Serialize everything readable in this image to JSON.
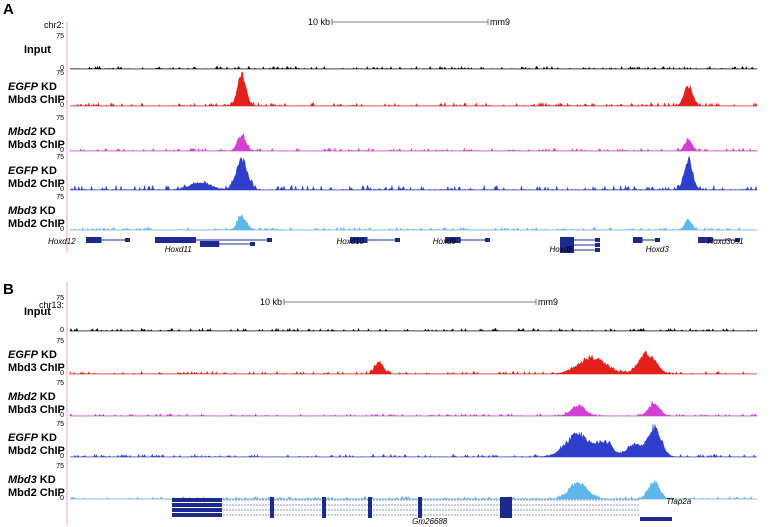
{
  "panels": [
    {
      "letter": "A",
      "chrom": "chr2:",
      "scale_label": "10 kb",
      "assembly": "mm9",
      "tracks": [
        {
          "name": "input",
          "line1": "Input",
          "line1_italic": "",
          "line2": "",
          "ymax": "75",
          "ymin": "0",
          "color": "#000000",
          "peaks": [],
          "noise": 2.0,
          "seed": 3
        },
        {
          "name": "egfp-mbd3",
          "line1": "KD",
          "line1_italic": "EGFP",
          "line2": "Mbd3 ChIP",
          "ymax": "75",
          "ymin": "0",
          "color": "#e3201b",
          "peaks": [
            {
              "x": 0.25,
              "h": 0.95,
              "w": 0.006
            },
            {
              "x": 0.9,
              "h": 0.6,
              "w": 0.006
            }
          ],
          "noise": 2.5,
          "seed": 7
        },
        {
          "name": "mbd2-mbd3",
          "line1": "KD",
          "line1_italic": "Mbd2",
          "line2": "Mbd3 ChIP",
          "ymax": "75",
          "ymin": "0",
          "color": "#d23fd2",
          "peaks": [
            {
              "x": 0.25,
              "h": 0.45,
              "w": 0.006
            },
            {
              "x": 0.9,
              "h": 0.3,
              "w": 0.005
            }
          ],
          "noise": 2.0,
          "seed": 11
        },
        {
          "name": "egfp-mbd2",
          "line1": "KD",
          "line1_italic": "EGFP",
          "line2": "Mbd2 ChIP",
          "ymax": "75",
          "ymin": "0",
          "color": "#2f3fcc",
          "peaks": [
            {
              "x": 0.25,
              "h": 0.9,
              "w": 0.008
            },
            {
              "x": 0.9,
              "h": 0.85,
              "w": 0.006
            },
            {
              "x": 0.19,
              "h": 0.2,
              "w": 0.015
            }
          ],
          "noise": 3.5,
          "seed": 13
        },
        {
          "name": "mbd3-mbd2",
          "line1": "KD",
          "line1_italic": "Mbd3",
          "line2": "Mbd2 ChIP",
          "ymax": "75",
          "ymin": "0",
          "color": "#5fb6ea",
          "peaks": [
            {
              "x": 0.25,
              "h": 0.4,
              "w": 0.006
            },
            {
              "x": 0.9,
              "h": 0.3,
              "w": 0.005
            }
          ],
          "noise": 2.0,
          "seed": 17
        }
      ],
      "genes": [
        {
          "label": "Hoxd12",
          "lx": 0.0,
          "ly": 0
        },
        {
          "label": "Hoxd11",
          "lx": 0.17,
          "ly": 1
        },
        {
          "label": "Hoxd10",
          "lx": 0.42,
          "ly": 0
        },
        {
          "label": "Hoxd9",
          "lx": 0.56,
          "ly": 0
        },
        {
          "label": "Hoxd8",
          "lx": 0.73,
          "ly": 1
        },
        {
          "label": "Hoxd3",
          "lx": 0.87,
          "ly": 1
        },
        {
          "label": "Hoxd3os1",
          "lx": 0.96,
          "ly": 0
        }
      ]
    },
    {
      "letter": "B",
      "chrom": "chr13:",
      "scale_label": "10 kb",
      "assembly": "mm9",
      "tracks": [
        {
          "name": "input",
          "line1": "Input",
          "line1_italic": "",
          "line2": "",
          "ymax": "75",
          "ymin": "0",
          "color": "#000000",
          "peaks": [],
          "noise": 2.0,
          "seed": 19
        },
        {
          "name": "egfp-mbd3",
          "line1": "KD",
          "line1_italic": "EGFP",
          "line2": "Mbd3 ChIP",
          "ymax": "75",
          "ymin": "0",
          "color": "#e3201b",
          "peaks": [
            {
              "x": 0.45,
              "h": 0.35,
              "w": 0.006
            },
            {
              "x": 0.76,
              "h": 0.45,
              "w": 0.02
            },
            {
              "x": 0.84,
              "h": 0.6,
              "w": 0.012
            }
          ],
          "noise": 2.0,
          "seed": 23
        },
        {
          "name": "mbd2-mbd3",
          "line1": "KD",
          "line1_italic": "Mbd2",
          "line2": "Mbd3 ChIP",
          "ymax": "75",
          "ymin": "0",
          "color": "#d23fd2",
          "peaks": [
            {
              "x": 0.74,
              "h": 0.3,
              "w": 0.01
            },
            {
              "x": 0.85,
              "h": 0.35,
              "w": 0.008
            }
          ],
          "noise": 1.8,
          "seed": 29
        },
        {
          "name": "egfp-mbd2",
          "line1": "KD",
          "line1_italic": "EGFP",
          "line2": "Mbd2 ChIP",
          "ymax": "75",
          "ymin": "0",
          "color": "#2f3fcc",
          "peaks": [
            {
              "x": 0.74,
              "h": 0.65,
              "w": 0.018
            },
            {
              "x": 0.78,
              "h": 0.4,
              "w": 0.01
            },
            {
              "x": 0.82,
              "h": 0.35,
              "w": 0.01
            },
            {
              "x": 0.85,
              "h": 0.85,
              "w": 0.01
            }
          ],
          "noise": 2.0,
          "seed": 31
        },
        {
          "name": "mbd3-mbd2",
          "line1": "KD",
          "line1_italic": "Mbd3",
          "line2": "Mbd2 ChIP",
          "ymax": "75",
          "ymin": "0",
          "color": "#5fb6ea",
          "peaks": [
            {
              "x": 0.74,
              "h": 0.5,
              "w": 0.012
            },
            {
              "x": 0.85,
              "h": 0.5,
              "w": 0.008
            }
          ],
          "noise": 1.8,
          "seed": 37
        }
      ],
      "genes": [
        {
          "label": "Tfap2a",
          "lx": 0.9,
          "ly": 0
        },
        {
          "label": "Gm26688",
          "lx": 0.53,
          "ly": 1
        }
      ]
    }
  ]
}
